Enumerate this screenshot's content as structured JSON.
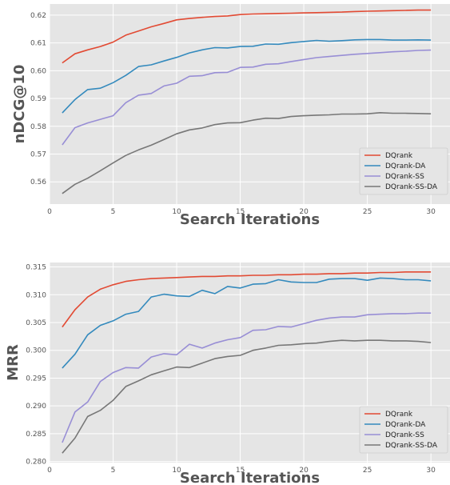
{
  "chart_data": [
    {
      "type": "line",
      "title": "",
      "xlabel": "Search Iterations",
      "ylabel": "nDCG@10",
      "xlim": [
        0,
        31.5
      ],
      "ylim": [
        0.552,
        0.624
      ],
      "xticks": [
        0,
        5,
        10,
        15,
        20,
        25,
        30
      ],
      "yticks": [
        0.56,
        0.57,
        0.58,
        0.59,
        0.6,
        0.61,
        0.62
      ],
      "ytick_labels": [
        "0.56",
        "0.57",
        "0.58",
        "0.59",
        "0.60",
        "0.61",
        "0.62"
      ],
      "grid": true,
      "legend_position": "lower-right",
      "x": [
        1,
        2,
        3,
        4,
        5,
        6,
        7,
        8,
        9,
        10,
        11,
        12,
        13,
        14,
        15,
        16,
        17,
        18,
        19,
        20,
        21,
        22,
        23,
        24,
        25,
        26,
        27,
        28,
        29,
        30
      ],
      "series": [
        {
          "name": "DQrank",
          "color": "#E24A33",
          "values": [
            0.6028,
            0.6061,
            0.6075,
            0.6087,
            0.6103,
            0.6128,
            0.6143,
            0.6158,
            0.617,
            0.6183,
            0.6188,
            0.6192,
            0.6195,
            0.6197,
            0.6202,
            0.6204,
            0.6205,
            0.6206,
            0.6207,
            0.6208,
            0.6209,
            0.621,
            0.6211,
            0.6213,
            0.6214,
            0.6215,
            0.6216,
            0.6217,
            0.6218,
            0.6218
          ]
        },
        {
          "name": "DQrank-DA",
          "color": "#348ABD",
          "values": [
            0.5848,
            0.5896,
            0.5932,
            0.5937,
            0.5957,
            0.5983,
            0.6015,
            0.6021,
            0.6035,
            0.6048,
            0.6064,
            0.6075,
            0.6083,
            0.6082,
            0.6087,
            0.6088,
            0.6096,
            0.6095,
            0.6101,
            0.6105,
            0.6109,
            0.6106,
            0.6108,
            0.6111,
            0.6112,
            0.6112,
            0.611,
            0.611,
            0.6111,
            0.611
          ]
        },
        {
          "name": "DQrank-SS",
          "color": "#988ED5",
          "values": [
            0.5733,
            0.5795,
            0.5812,
            0.5825,
            0.5838,
            0.5885,
            0.5912,
            0.5918,
            0.5945,
            0.5955,
            0.598,
            0.5982,
            0.5993,
            0.5994,
            0.6012,
            0.6013,
            0.6023,
            0.6025,
            0.6033,
            0.604,
            0.6047,
            0.6051,
            0.6055,
            0.6059,
            0.6062,
            0.6065,
            0.6068,
            0.607,
            0.6073,
            0.6074
          ]
        },
        {
          "name": "DQrank-SS-DA",
          "color": "#777777",
          "values": [
            0.5558,
            0.5591,
            0.5613,
            0.564,
            0.5668,
            0.5695,
            0.5715,
            0.5732,
            0.5752,
            0.5773,
            0.5787,
            0.5794,
            0.5806,
            0.5812,
            0.5813,
            0.5822,
            0.5829,
            0.5828,
            0.5835,
            0.5838,
            0.584,
            0.5841,
            0.5844,
            0.5844,
            0.5845,
            0.5849,
            0.5847,
            0.5847,
            0.5846,
            0.5845
          ]
        }
      ]
    },
    {
      "type": "line",
      "title": "",
      "xlabel": "Search Iterations",
      "ylabel": "MRR",
      "xlim": [
        0,
        31.5
      ],
      "ylim": [
        0.2798,
        0.3158
      ],
      "xticks": [
        0,
        5,
        10,
        15,
        20,
        25,
        30
      ],
      "yticks": [
        0.28,
        0.285,
        0.29,
        0.295,
        0.3,
        0.305,
        0.31,
        0.315
      ],
      "ytick_labels": [
        "0.280",
        "0.285",
        "0.290",
        "0.295",
        "0.300",
        "0.305",
        "0.310",
        "0.315"
      ],
      "grid": true,
      "legend_position": "lower-right",
      "x": [
        1,
        2,
        3,
        4,
        5,
        6,
        7,
        8,
        9,
        10,
        11,
        12,
        13,
        14,
        15,
        16,
        17,
        18,
        19,
        20,
        21,
        22,
        23,
        24,
        25,
        26,
        27,
        28,
        29,
        30
      ],
      "series": [
        {
          "name": "DQrank",
          "color": "#E24A33",
          "values": [
            0.3042,
            0.3073,
            0.3096,
            0.311,
            0.3118,
            0.3124,
            0.3127,
            0.3129,
            0.313,
            0.3131,
            0.3132,
            0.3133,
            0.3133,
            0.3134,
            0.3134,
            0.3135,
            0.3135,
            0.3136,
            0.3136,
            0.3137,
            0.3137,
            0.3138,
            0.3138,
            0.3139,
            0.3139,
            0.314,
            0.314,
            0.3141,
            0.3141,
            0.3141
          ]
        },
        {
          "name": "DQrank-DA",
          "color": "#348ABD",
          "values": [
            0.2968,
            0.2993,
            0.3028,
            0.3045,
            0.3053,
            0.3065,
            0.307,
            0.3096,
            0.3101,
            0.3098,
            0.3097,
            0.3108,
            0.3102,
            0.3115,
            0.3112,
            0.3119,
            0.312,
            0.3127,
            0.3123,
            0.3122,
            0.3122,
            0.3128,
            0.3129,
            0.3129,
            0.3126,
            0.313,
            0.3129,
            0.3127,
            0.3127,
            0.3125
          ]
        },
        {
          "name": "DQrank-SS",
          "color": "#988ED5",
          "values": [
            0.2834,
            0.2889,
            0.2907,
            0.2944,
            0.296,
            0.2969,
            0.2968,
            0.2988,
            0.2994,
            0.2992,
            0.3011,
            0.3004,
            0.3013,
            0.3019,
            0.3023,
            0.3036,
            0.3037,
            0.3043,
            0.3042,
            0.3048,
            0.3054,
            0.3058,
            0.306,
            0.306,
            0.3064,
            0.3065,
            0.3066,
            0.3066,
            0.3067,
            0.3067
          ]
        },
        {
          "name": "DQrank-SS-DA",
          "color": "#777777",
          "values": [
            0.2815,
            0.2842,
            0.2881,
            0.2892,
            0.291,
            0.2935,
            0.2945,
            0.2956,
            0.2963,
            0.297,
            0.2969,
            0.2977,
            0.2985,
            0.2989,
            0.2991,
            0.3,
            0.3004,
            0.3009,
            0.301,
            0.3012,
            0.3013,
            0.3016,
            0.3018,
            0.3017,
            0.3018,
            0.3018,
            0.3017,
            0.3017,
            0.3016,
            0.3014
          ]
        }
      ]
    }
  ]
}
